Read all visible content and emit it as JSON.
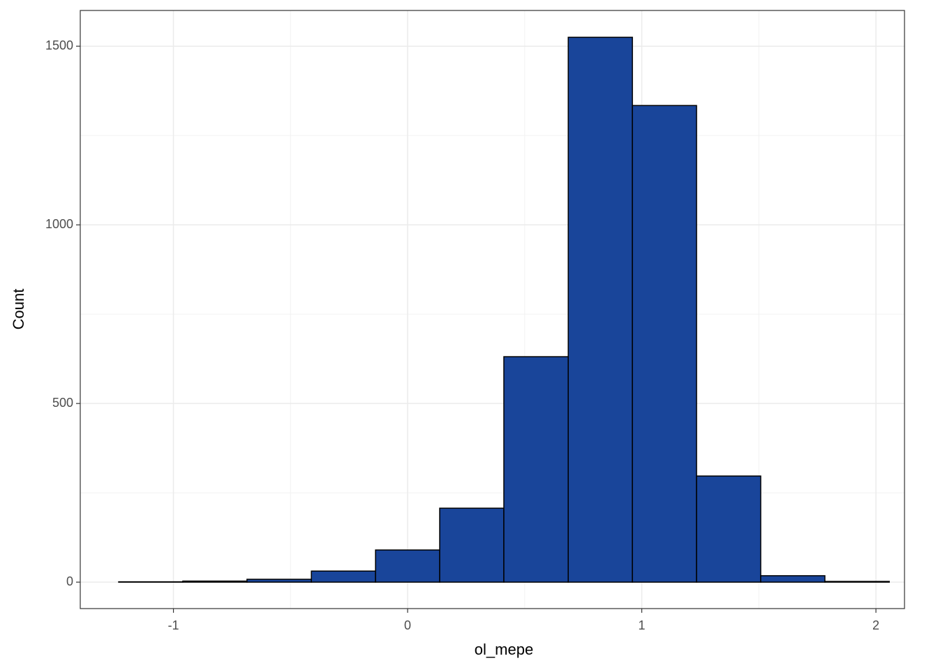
{
  "chart_data": {
    "type": "histogram",
    "x_label": "ol_mepe",
    "y_label": "Count",
    "bins": [
      -1.234,
      -0.96,
      -0.686,
      -0.411,
      -0.137,
      0.137,
      0.411,
      0.686,
      0.96,
      1.234,
      1.508,
      1.782,
      2.057
    ],
    "values": [
      1,
      3,
      8,
      31,
      90,
      207,
      631,
      1525,
      1334,
      297,
      18,
      2
    ],
    "color": "#19459a",
    "edge_color": "#000000",
    "xlim": [
      -1.398,
      2.122
    ],
    "ylim": [
      -74,
      1600
    ],
    "xticks": [
      -1,
      0,
      1,
      2
    ],
    "yticks": [
      0,
      500,
      1000,
      1500
    ],
    "x_minor_ticks": [
      -0.5,
      0.5,
      1.5
    ],
    "y_minor_ticks": [
      250,
      750,
      1250
    ],
    "grid": true
  }
}
